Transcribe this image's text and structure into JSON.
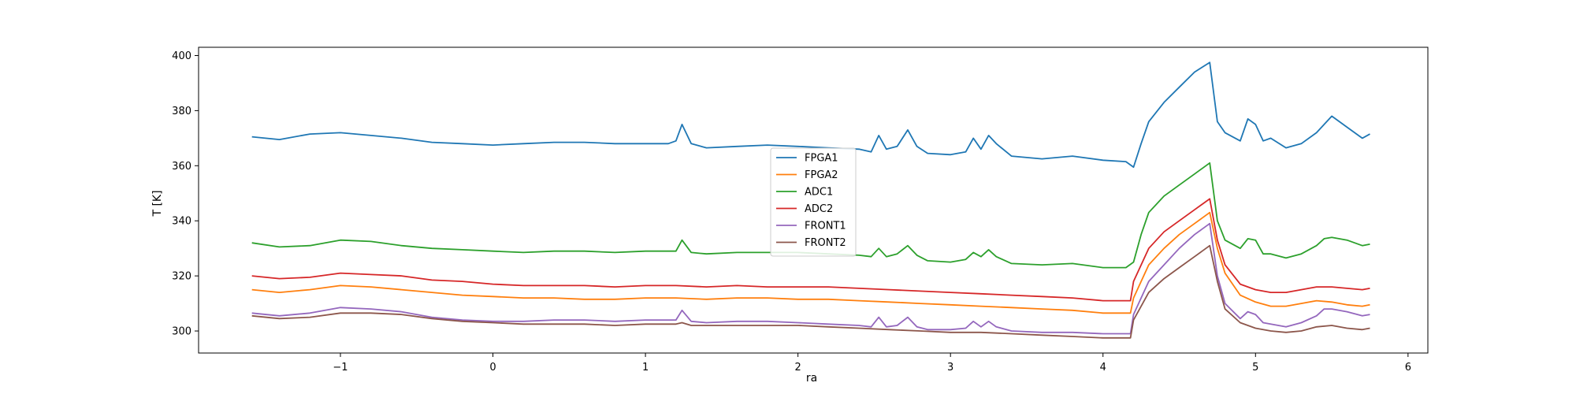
{
  "chart_data": {
    "type": "line",
    "title": "",
    "xlabel": "ra",
    "ylabel": "T [K]",
    "xlim": [
      -1.93,
      6.13
    ],
    "ylim": [
      292,
      403
    ],
    "xticks": [
      -1,
      0,
      1,
      2,
      3,
      4,
      5,
      6
    ],
    "xtick_labels": [
      "−1",
      "0",
      "1",
      "2",
      "3",
      "4",
      "5",
      "6"
    ],
    "yticks": [
      300,
      320,
      340,
      360,
      380,
      400
    ],
    "ytick_labels": [
      "300",
      "320",
      "340",
      "360",
      "380",
      "400"
    ],
    "grid": false,
    "legend_position": "center",
    "series": [
      {
        "name": "FPGA1",
        "color": "#1f77b4",
        "x": [
          -1.58,
          -1.4,
          -1.2,
          -1.0,
          -0.8,
          -0.6,
          -0.4,
          -0.2,
          0.0,
          0.2,
          0.4,
          0.6,
          0.8,
          1.0,
          1.15,
          1.2,
          1.24,
          1.3,
          1.4,
          1.6,
          1.8,
          2.0,
          2.2,
          2.4,
          2.48,
          2.53,
          2.58,
          2.65,
          2.72,
          2.78,
          2.85,
          3.0,
          3.1,
          3.15,
          3.2,
          3.25,
          3.3,
          3.4,
          3.6,
          3.8,
          4.0,
          4.15,
          4.2,
          4.25,
          4.3,
          4.4,
          4.5,
          4.6,
          4.7,
          4.75,
          4.8,
          4.9,
          4.95,
          5.0,
          5.05,
          5.1,
          5.2,
          5.3,
          5.4,
          5.45,
          5.5,
          5.6,
          5.7,
          5.75
        ],
        "values": [
          370.5,
          369.5,
          371.5,
          372,
          371,
          370,
          368.5,
          368,
          367.5,
          368,
          368.5,
          368.5,
          368,
          368,
          368,
          369,
          375,
          368,
          366.5,
          367,
          367.5,
          367,
          366.5,
          366,
          365,
          371,
          366,
          367,
          373,
          367,
          364.5,
          364,
          365,
          370,
          366,
          371,
          368,
          363.5,
          362.5,
          363.5,
          362,
          361.5,
          359.5,
          368,
          376,
          383,
          388.5,
          394,
          397.5,
          376,
          372,
          369,
          377,
          375,
          369,
          370,
          366.5,
          368,
          372,
          375,
          378,
          374,
          370,
          371.5
        ]
      },
      {
        "name": "FPGA2",
        "color": "#ff7f0e",
        "x": [
          -1.58,
          -1.4,
          -1.2,
          -1.0,
          -0.8,
          -0.6,
          -0.4,
          -0.2,
          0.0,
          0.2,
          0.4,
          0.6,
          0.8,
          1.0,
          1.2,
          1.4,
          1.6,
          1.8,
          2.0,
          2.2,
          2.4,
          2.6,
          2.8,
          3.0,
          3.2,
          3.4,
          3.6,
          3.8,
          4.0,
          4.18,
          4.2,
          4.3,
          4.4,
          4.5,
          4.6,
          4.7,
          4.75,
          4.8,
          4.9,
          5.0,
          5.1,
          5.2,
          5.3,
          5.4,
          5.5,
          5.6,
          5.7,
          5.75
        ],
        "values": [
          315,
          314,
          315,
          316.5,
          316,
          315,
          314,
          313,
          312.5,
          312,
          312,
          311.5,
          311.5,
          312,
          312,
          311.5,
          312,
          312,
          311.5,
          311.5,
          311,
          310.5,
          310,
          309.5,
          309,
          308.5,
          308,
          307.5,
          306.5,
          306.5,
          312,
          324,
          330,
          335,
          339,
          343,
          330,
          321,
          313,
          310.5,
          309,
          309,
          310,
          311,
          310.5,
          309.5,
          309,
          309.5
        ]
      },
      {
        "name": "ADC1",
        "color": "#2ca02c",
        "x": [
          -1.58,
          -1.4,
          -1.2,
          -1.0,
          -0.8,
          -0.6,
          -0.4,
          -0.2,
          0.0,
          0.2,
          0.4,
          0.6,
          0.8,
          1.0,
          1.15,
          1.2,
          1.24,
          1.3,
          1.4,
          1.6,
          1.8,
          2.0,
          2.2,
          2.4,
          2.48,
          2.53,
          2.58,
          2.65,
          2.72,
          2.78,
          2.85,
          3.0,
          3.1,
          3.15,
          3.2,
          3.25,
          3.3,
          3.4,
          3.6,
          3.8,
          4.0,
          4.15,
          4.2,
          4.25,
          4.3,
          4.4,
          4.5,
          4.6,
          4.7,
          4.75,
          4.8,
          4.9,
          4.95,
          5.0,
          5.05,
          5.1,
          5.2,
          5.3,
          5.4,
          5.45,
          5.5,
          5.6,
          5.7,
          5.75
        ],
        "values": [
          332,
          330.5,
          331,
          333,
          332.5,
          331,
          330,
          329.5,
          329,
          328.5,
          329,
          329,
          328.5,
          329,
          329,
          329,
          333,
          328.5,
          328,
          328.5,
          328.5,
          328.5,
          328,
          327.5,
          327,
          330,
          327,
          328,
          331,
          327.5,
          325.5,
          325,
          326,
          328.5,
          327,
          329.5,
          327,
          324.5,
          324,
          324.5,
          323,
          323,
          325,
          335,
          343,
          349,
          353,
          357,
          361,
          340,
          333,
          330,
          333.5,
          333,
          328,
          328,
          326.5,
          328,
          331,
          333.5,
          334,
          333,
          331,
          331.5
        ]
      },
      {
        "name": "ADC2",
        "color": "#d62728",
        "x": [
          -1.58,
          -1.4,
          -1.2,
          -1.0,
          -0.8,
          -0.6,
          -0.4,
          -0.2,
          0.0,
          0.2,
          0.4,
          0.6,
          0.8,
          1.0,
          1.2,
          1.4,
          1.6,
          1.8,
          2.0,
          2.2,
          2.4,
          2.6,
          2.8,
          3.0,
          3.2,
          3.4,
          3.6,
          3.8,
          4.0,
          4.18,
          4.2,
          4.3,
          4.4,
          4.5,
          4.6,
          4.7,
          4.75,
          4.8,
          4.9,
          5.0,
          5.1,
          5.2,
          5.3,
          5.4,
          5.5,
          5.6,
          5.7,
          5.75
        ],
        "values": [
          320,
          319,
          319.5,
          321,
          320.5,
          320,
          318.5,
          318,
          317,
          316.5,
          316.5,
          316.5,
          316,
          316.5,
          316.5,
          316,
          316.5,
          316,
          316,
          316,
          315.5,
          315,
          314.5,
          314,
          313.5,
          313,
          312.5,
          312,
          311,
          311,
          318,
          330,
          336,
          340,
          344,
          348,
          333,
          324,
          317,
          315,
          314,
          314,
          315,
          316,
          316,
          315.5,
          315,
          315.5
        ]
      },
      {
        "name": "FRONT1",
        "color": "#9467bd",
        "x": [
          -1.58,
          -1.4,
          -1.2,
          -1.0,
          -0.8,
          -0.6,
          -0.4,
          -0.2,
          0.0,
          0.2,
          0.4,
          0.6,
          0.8,
          1.0,
          1.15,
          1.2,
          1.24,
          1.3,
          1.4,
          1.6,
          1.8,
          2.0,
          2.2,
          2.4,
          2.48,
          2.53,
          2.58,
          2.65,
          2.72,
          2.78,
          2.85,
          3.0,
          3.1,
          3.15,
          3.2,
          3.25,
          3.3,
          3.4,
          3.6,
          3.8,
          4.0,
          4.18,
          4.2,
          4.3,
          4.4,
          4.5,
          4.6,
          4.7,
          4.75,
          4.8,
          4.9,
          4.95,
          5.0,
          5.05,
          5.1,
          5.2,
          5.3,
          5.4,
          5.45,
          5.5,
          5.6,
          5.7,
          5.75
        ],
        "values": [
          306.5,
          305.5,
          306.5,
          308.5,
          308,
          307,
          305,
          304,
          303.5,
          303.5,
          304,
          304,
          303.5,
          304,
          304,
          304,
          307.5,
          303.5,
          303,
          303.5,
          303.5,
          303,
          302.5,
          302,
          301.5,
          305,
          301.5,
          302,
          305,
          301.5,
          300.5,
          300.5,
          301,
          303.5,
          301.5,
          303.5,
          301.5,
          300,
          299.5,
          299.5,
          299,
          299,
          306,
          318,
          324,
          330,
          335,
          339,
          320,
          310,
          304.5,
          307,
          306,
          303,
          302.5,
          301.5,
          303,
          305.5,
          308,
          308,
          307,
          305.5,
          306
        ]
      },
      {
        "name": "FRONT2",
        "color": "#8c564b",
        "x": [
          -1.58,
          -1.4,
          -1.2,
          -1.0,
          -0.8,
          -0.6,
          -0.4,
          -0.2,
          0.0,
          0.2,
          0.4,
          0.6,
          0.8,
          1.0,
          1.2,
          1.24,
          1.3,
          1.4,
          1.6,
          1.8,
          2.0,
          2.2,
          2.4,
          2.6,
          2.8,
          3.0,
          3.2,
          3.4,
          3.6,
          3.8,
          4.0,
          4.18,
          4.2,
          4.3,
          4.4,
          4.5,
          4.6,
          4.7,
          4.75,
          4.8,
          4.9,
          5.0,
          5.1,
          5.2,
          5.3,
          5.4,
          5.5,
          5.6,
          5.7,
          5.75
        ],
        "values": [
          305.5,
          304.5,
          305,
          306.5,
          306.5,
          306,
          304.5,
          303.5,
          303,
          302.5,
          302.5,
          302.5,
          302,
          302.5,
          302.5,
          303,
          302,
          302,
          302,
          302,
          302,
          301.5,
          301,
          300.5,
          300,
          299.5,
          299.5,
          299,
          298.5,
          298,
          297.5,
          297.5,
          304,
          314,
          319,
          323,
          327,
          331,
          318,
          308,
          303,
          301,
          300,
          299.5,
          300,
          301.5,
          302,
          301,
          300.5,
          301
        ]
      }
    ]
  }
}
